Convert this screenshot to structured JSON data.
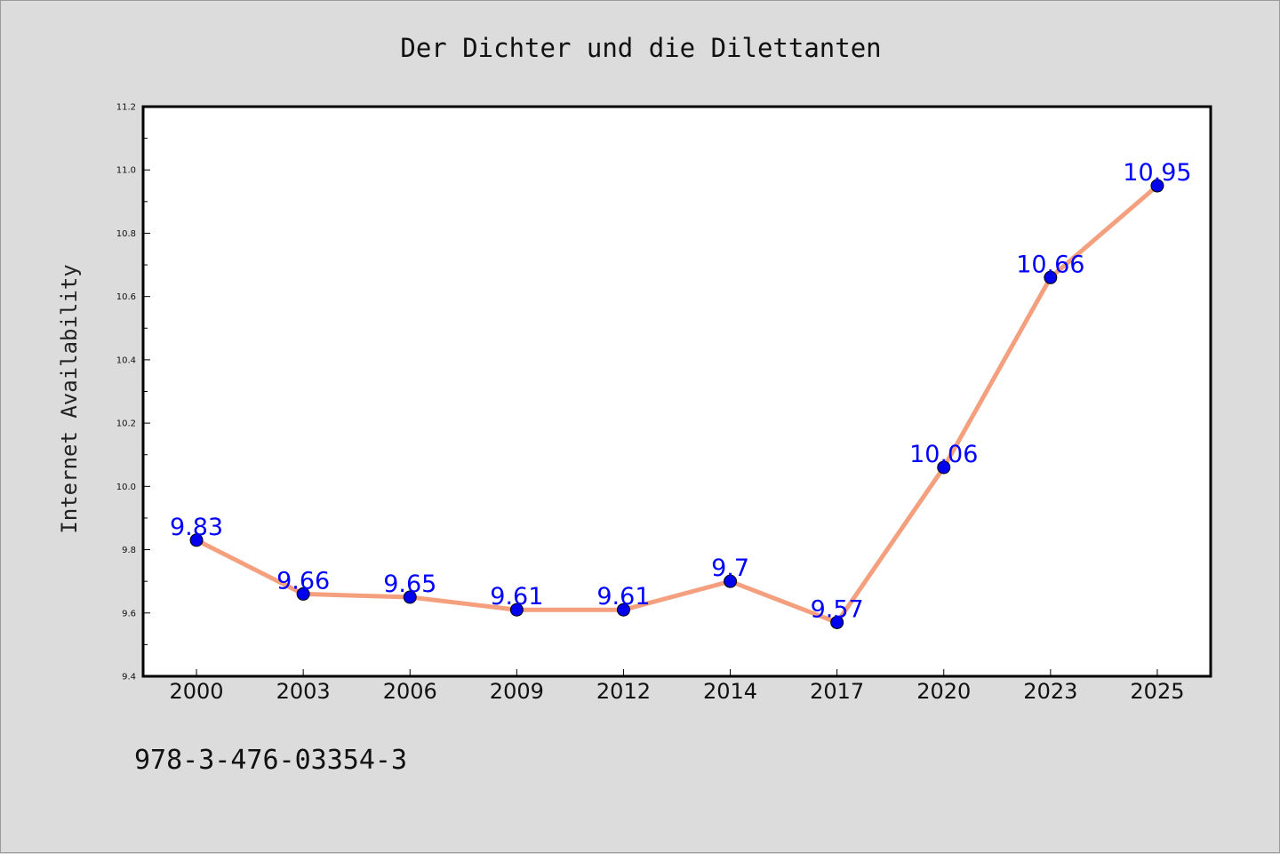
{
  "chart_data": {
    "type": "line",
    "title": "Der Dichter und die Dilettanten",
    "xlabel": "",
    "ylabel": "Internet Availability",
    "ylim": [
      9.4,
      11.2
    ],
    "ytick_labels": [
      "9.4",
      "9.6",
      "9.8",
      "10.0",
      "10.2",
      "10.4",
      "10.6",
      "10.8",
      "11.0",
      "11.2"
    ],
    "categories": [
      "2000",
      "2003",
      "2006",
      "2009",
      "2012",
      "2014",
      "2017",
      "2020",
      "2023",
      "2025"
    ],
    "series": [
      {
        "values": [
          9.83,
          9.66,
          9.65,
          9.61,
          9.61,
          9.7,
          9.57,
          10.06,
          10.66,
          10.95
        ],
        "data_labels": [
          "9.83",
          "9.66",
          "9.65",
          "9.61",
          "9.61",
          "9.7",
          "9.57",
          "10.06",
          "10.66",
          "10.95"
        ],
        "line_color": "#f4a07e",
        "marker_color": "#0000ee"
      }
    ],
    "label_color": "#0000ff",
    "grid": false,
    "legend": "none"
  },
  "footer": {
    "isbn": "978-3-476-03354-3"
  }
}
